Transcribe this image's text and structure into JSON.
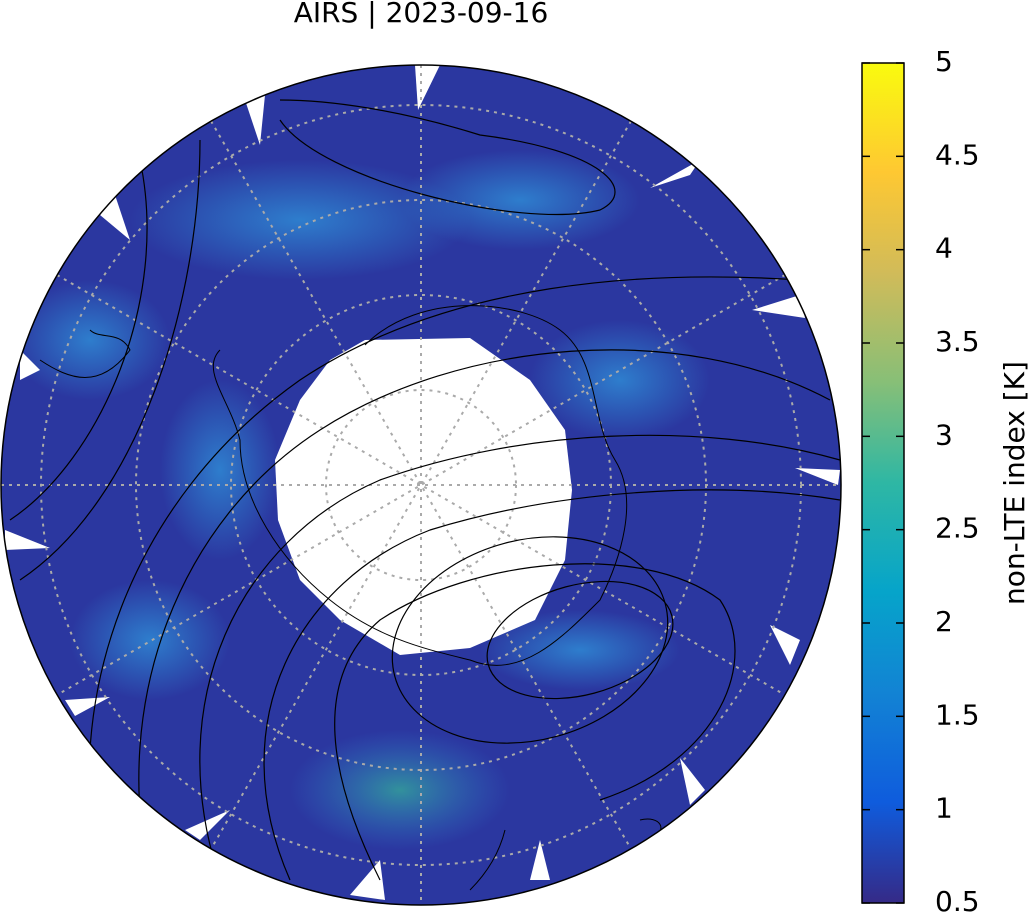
{
  "title": "AIRS | 2023-09-16",
  "colorbar": {
    "label": "non-LTE index [K]",
    "lim": [
      0.5,
      5
    ],
    "ticks": [
      0.5,
      1,
      1.5,
      2,
      2.5,
      3,
      3.5,
      4,
      4.5,
      5
    ]
  }
}
